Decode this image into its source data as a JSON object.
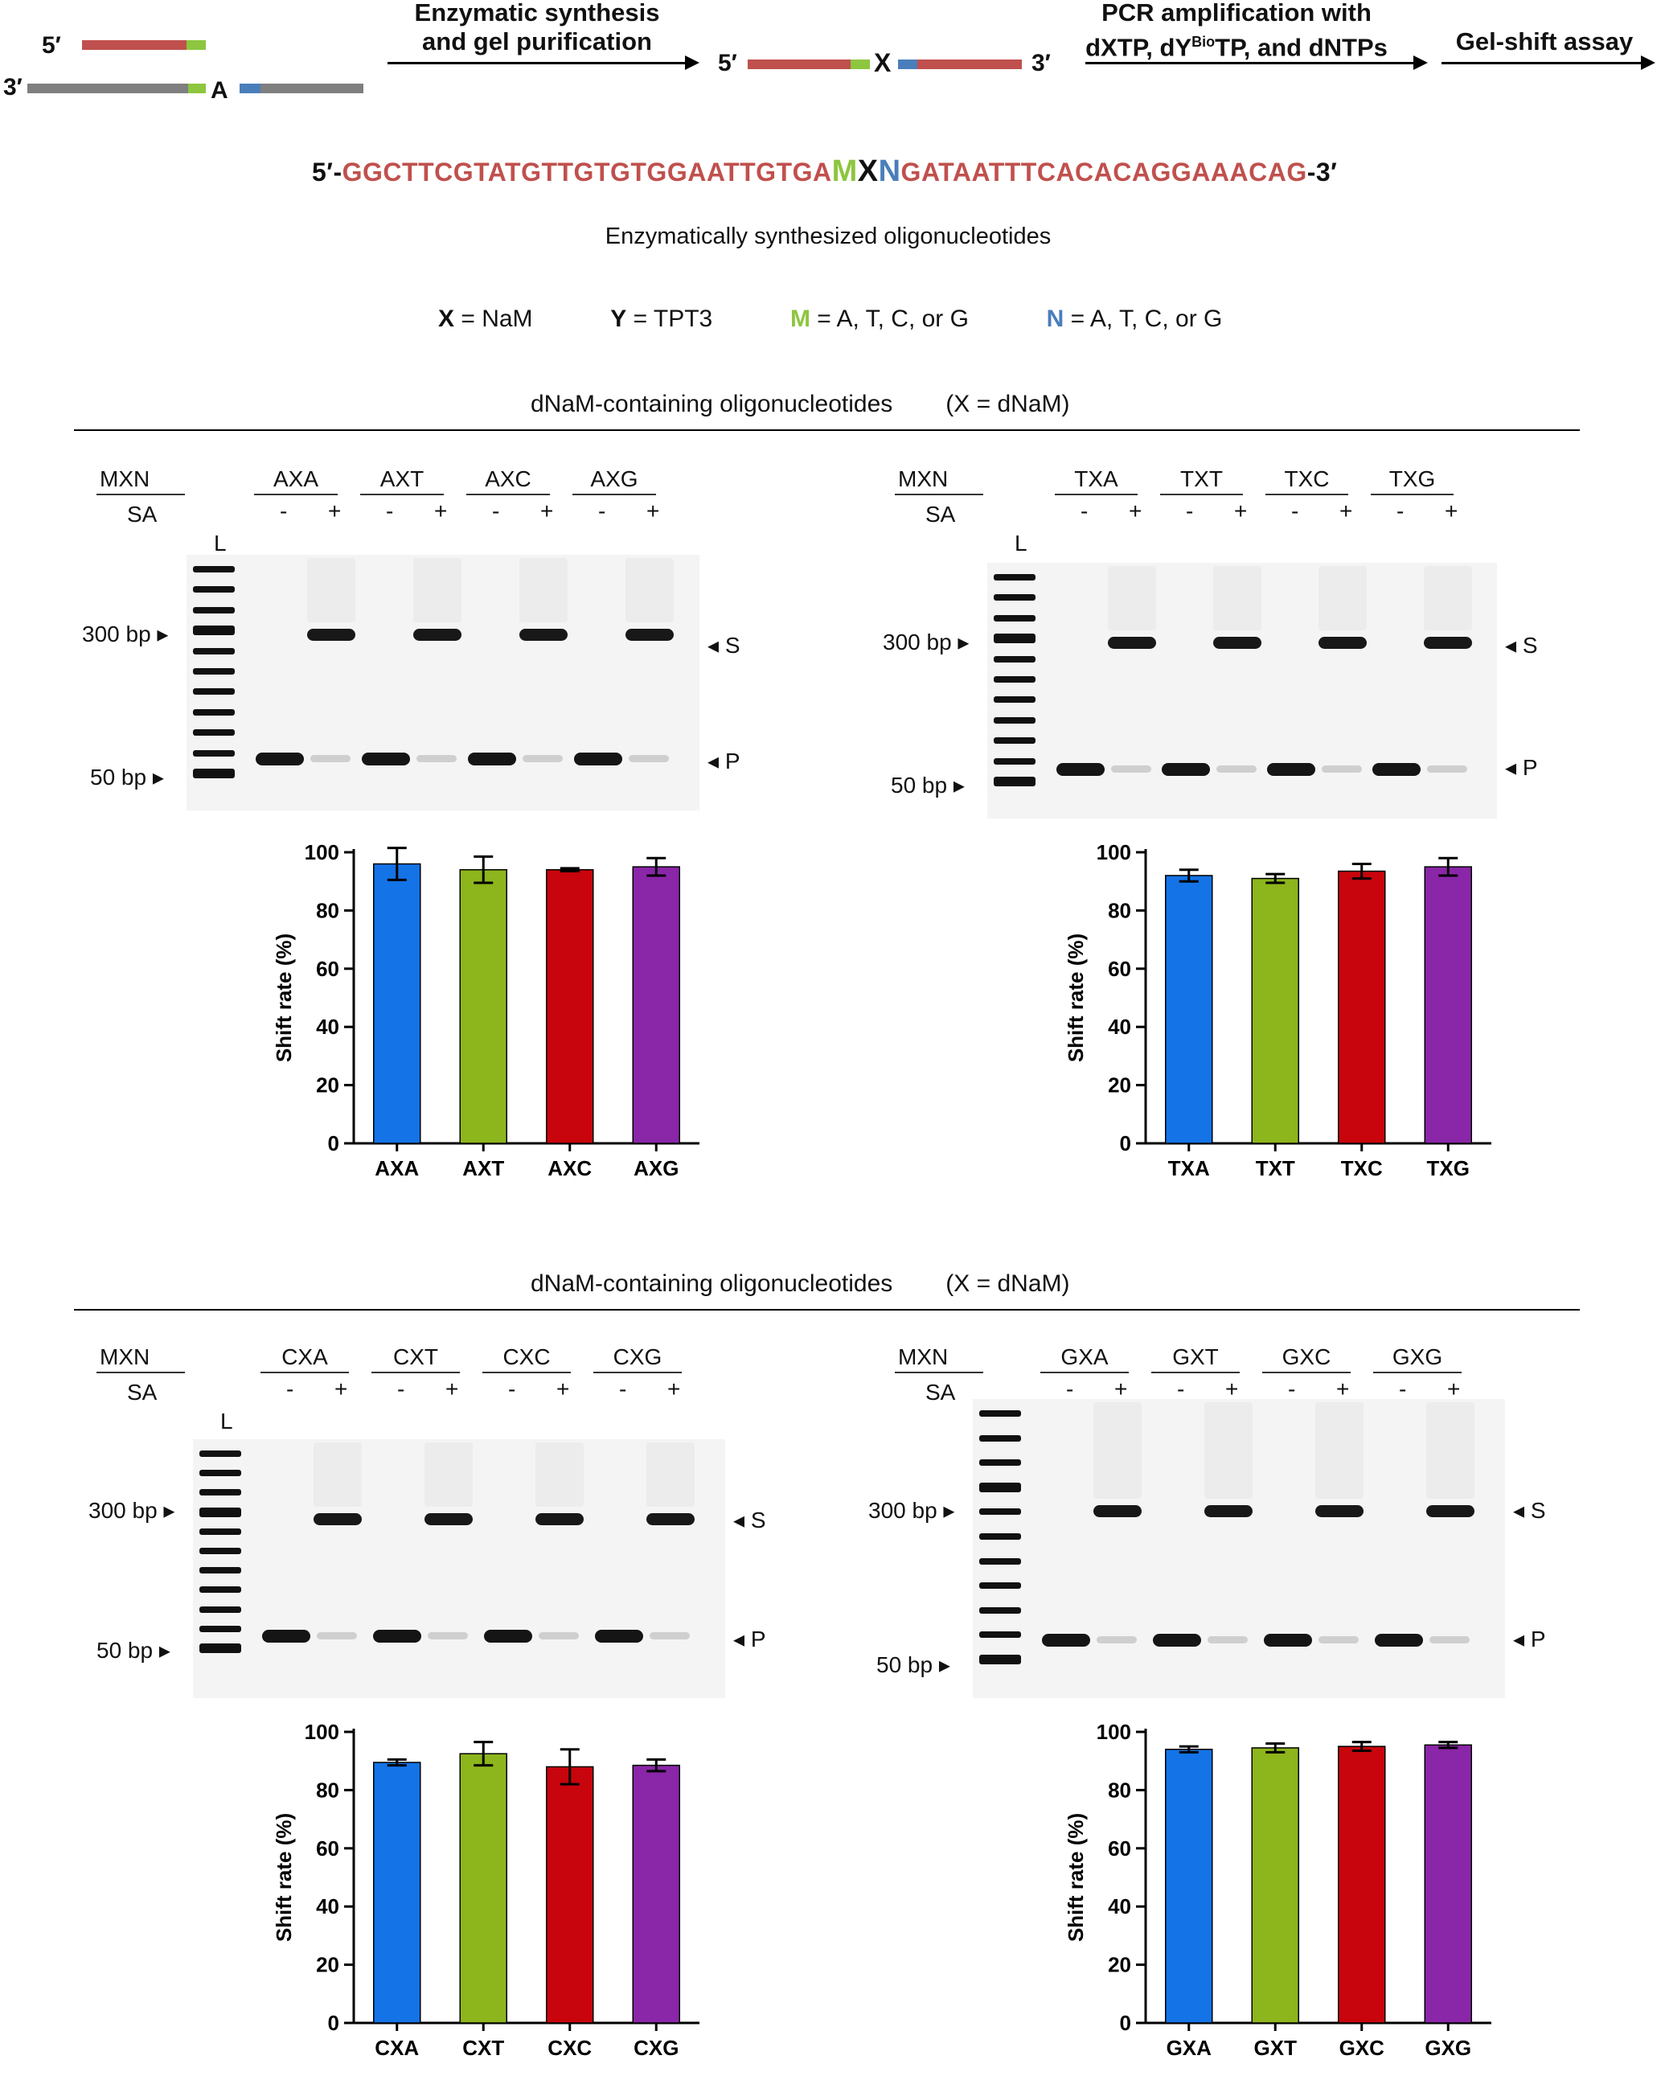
{
  "schematic": {
    "five_prime": "5′",
    "three_prime": "3′",
    "base_A": "A",
    "step1": [
      "Enzymatic synthesis",
      "and gel purification"
    ],
    "step2": [
      "PCR amplification with",
      "dXTP, dY",
      "Bio",
      "TP, and dNTPs"
    ],
    "step3": "Gel-shift assay",
    "product_5": "5′",
    "product_X": "X",
    "product_3": "3′"
  },
  "sequence": {
    "prefix": "5′-",
    "left": "GGCTTCGTATGTTGTGTGGAATTGTGA",
    "M": "M",
    "X": "X",
    "N": "N",
    "right": "GATAATTTCACACAGGAAACAG",
    "suffix": "-3′",
    "caption": "Enzymatically synthesized oligonucleotides",
    "colors": {
      "seq": "#c0504d",
      "M": "#8dc63f",
      "N": "#4a7ebb"
    }
  },
  "legend": {
    "x_sym": "X",
    "x_def": " = NaM",
    "y_sym": "Y",
    "y_def": " = TPT3",
    "m_sym": "M",
    "m_def": " = A, T, C, or G",
    "n_sym": "N",
    "n_def": " = A, T, C, or G"
  },
  "section_title": "dNaM-containing oligonucleotides",
  "section_note": "(X = dNaM)",
  "gel_labels": {
    "mxn": "MXN",
    "sa": "SA",
    "ladder": "L",
    "minus": "-",
    "plus": "+",
    "bp300": "300 bp",
    "bp50": "50 bp",
    "S": "S",
    "P": "P"
  },
  "panels": [
    {
      "groups": [
        "AXA",
        "AXT",
        "AXC",
        "AXG"
      ]
    },
    {
      "groups": [
        "TXA",
        "TXT",
        "TXC",
        "TXG"
      ]
    },
    {
      "groups": [
        "CXA",
        "CXT",
        "CXC",
        "CXG"
      ]
    },
    {
      "groups": [
        "GXA",
        "GXT",
        "GXC",
        "GXG"
      ]
    }
  ],
  "bar_colors": [
    "#1473e6",
    "#8db51c",
    "#c8040c",
    "#8a26a8"
  ],
  "chart_data": [
    {
      "type": "bar",
      "ylabel": "Shift rate (%)",
      "ylim": [
        0,
        100
      ],
      "yticks": [
        0,
        20,
        40,
        60,
        80,
        100
      ],
      "categories": [
        "AXA",
        "AXT",
        "AXC",
        "AXG"
      ],
      "values": [
        96,
        94,
        94,
        95
      ],
      "errors": [
        5.5,
        4.5,
        0.5,
        3
      ]
    },
    {
      "type": "bar",
      "ylabel": "Shift rate (%)",
      "ylim": [
        0,
        100
      ],
      "yticks": [
        0,
        20,
        40,
        60,
        80,
        100
      ],
      "categories": [
        "TXA",
        "TXT",
        "TXC",
        "TXG"
      ],
      "values": [
        92,
        91,
        93.5,
        95
      ],
      "errors": [
        2,
        1.5,
        2.5,
        3
      ]
    },
    {
      "type": "bar",
      "ylabel": "Shift rate (%)",
      "ylim": [
        0,
        100
      ],
      "yticks": [
        0,
        20,
        40,
        60,
        80,
        100
      ],
      "categories": [
        "CXA",
        "CXT",
        "CXC",
        "CXG"
      ],
      "values": [
        89.5,
        92.5,
        88,
        88.5
      ],
      "errors": [
        1,
        4,
        6,
        2
      ]
    },
    {
      "type": "bar",
      "ylabel": "Shift rate (%)",
      "ylim": [
        0,
        100
      ],
      "yticks": [
        0,
        20,
        40,
        60,
        80,
        100
      ],
      "categories": [
        "GXA",
        "GXT",
        "GXC",
        "GXG"
      ],
      "values": [
        94,
        94.5,
        95,
        95.5
      ],
      "errors": [
        1,
        1.5,
        1.5,
        1
      ]
    }
  ]
}
